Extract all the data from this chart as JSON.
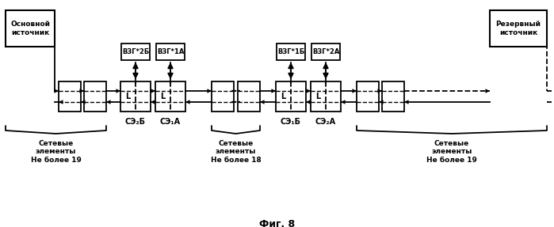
{
  "fig_width": 6.99,
  "fig_height": 2.87,
  "dpi": 100,
  "bg_color": "#ffffff",
  "title": "Фиг. 8",
  "main_source_label": "Основной\nисточник",
  "reserve_source_label": "Резервный\nисточник",
  "vzg_labels": [
    "ВЗГ*2Б",
    "ВЗГ*1А",
    "ВЗГ*1Б",
    "ВЗГ*2А"
  ],
  "se_labels": [
    "СЭ₂Б",
    "СЭ₁А",
    "СЭ₁Б",
    "СЭ₂А"
  ],
  "group_labels": [
    "Сетевые\nэлементы\nНе более 19",
    "Сетевые\nэлементы\nНе более 18",
    "Сетевые\nэлементы\nНе более 19"
  ]
}
